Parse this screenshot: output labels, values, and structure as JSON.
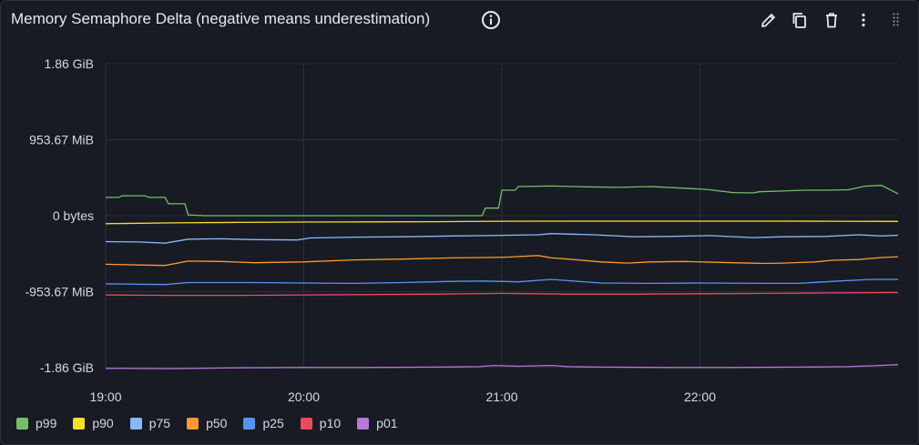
{
  "panel": {
    "title": "Memory Semaphore Delta (negative means underestimation)",
    "icons": [
      "info-icon",
      "edit-icon",
      "duplicate-icon",
      "delete-icon",
      "more-vertical-icon",
      "drag-handle-icon"
    ]
  },
  "chart_data": {
    "type": "line",
    "title": "Memory Semaphore Delta (negative means underestimation)",
    "y_unit": "MiB",
    "yticks": [
      {
        "label": "1.86 GiB",
        "value": 1907.35
      },
      {
        "label": "953.67 MiB",
        "value": 953.67
      },
      {
        "label": "0 bytes",
        "value": 0
      },
      {
        "label": "-953.67 MiB",
        "value": -953.67
      },
      {
        "label": "-1.86 GiB",
        "value": -1907.35
      }
    ],
    "xticks": [
      {
        "label": "19:00",
        "value": 0
      },
      {
        "label": "20:00",
        "value": 60
      },
      {
        "label": "21:00",
        "value": 120
      },
      {
        "label": "22:00",
        "value": 180
      }
    ],
    "x_unit": "minutes after 19:00",
    "xlim": [
      0,
      240
    ],
    "ylim": [
      -1907.35,
      1907.35
    ],
    "grid": true,
    "legend_position": "bottom-left",
    "series": [
      {
        "name": "p99",
        "color": "#73bf69",
        "points": [
          [
            0,
            230
          ],
          [
            4,
            230
          ],
          [
            5,
            250
          ],
          [
            12,
            250
          ],
          [
            13,
            230
          ],
          [
            18,
            230
          ],
          [
            19,
            150
          ],
          [
            24,
            150
          ],
          [
            25,
            10
          ],
          [
            30,
            0
          ],
          [
            60,
            0
          ],
          [
            90,
            0
          ],
          [
            114,
            0
          ],
          [
            115,
            95
          ],
          [
            119,
            95
          ],
          [
            120,
            320
          ],
          [
            124,
            320
          ],
          [
            125,
            365
          ],
          [
            135,
            372
          ],
          [
            145,
            362
          ],
          [
            155,
            355
          ],
          [
            165,
            365
          ],
          [
            175,
            345
          ],
          [
            182,
            330
          ],
          [
            190,
            290
          ],
          [
            196,
            285
          ],
          [
            198,
            300
          ],
          [
            205,
            310
          ],
          [
            212,
            320
          ],
          [
            219,
            320
          ],
          [
            225,
            325
          ],
          [
            230,
            370
          ],
          [
            235,
            380
          ],
          [
            240,
            275
          ]
        ]
      },
      {
        "name": "p90",
        "color": "#fade2a",
        "points": [
          [
            0,
            -100
          ],
          [
            20,
            -90
          ],
          [
            40,
            -85
          ],
          [
            60,
            -80
          ],
          [
            80,
            -78
          ],
          [
            100,
            -75
          ],
          [
            120,
            -70
          ],
          [
            140,
            -68
          ],
          [
            160,
            -68
          ],
          [
            180,
            -68
          ],
          [
            200,
            -68
          ],
          [
            220,
            -70
          ],
          [
            240,
            -72
          ]
        ]
      },
      {
        "name": "p75",
        "color": "#8ab8ff",
        "points": [
          [
            0,
            -325
          ],
          [
            10,
            -330
          ],
          [
            18,
            -345
          ],
          [
            25,
            -295
          ],
          [
            35,
            -290
          ],
          [
            45,
            -300
          ],
          [
            58,
            -305
          ],
          [
            62,
            -280
          ],
          [
            75,
            -270
          ],
          [
            90,
            -265
          ],
          [
            105,
            -255
          ],
          [
            115,
            -250
          ],
          [
            122,
            -245
          ],
          [
            131,
            -240
          ],
          [
            135,
            -225
          ],
          [
            148,
            -240
          ],
          [
            160,
            -265
          ],
          [
            170,
            -260
          ],
          [
            183,
            -250
          ],
          [
            196,
            -275
          ],
          [
            205,
            -265
          ],
          [
            218,
            -260
          ],
          [
            228,
            -240
          ],
          [
            235,
            -255
          ],
          [
            240,
            -245
          ]
        ]
      },
      {
        "name": "p50",
        "color": "#ff9830",
        "points": [
          [
            0,
            -610
          ],
          [
            12,
            -620
          ],
          [
            18,
            -625
          ],
          [
            25,
            -570
          ],
          [
            35,
            -575
          ],
          [
            45,
            -590
          ],
          [
            60,
            -580
          ],
          [
            75,
            -555
          ],
          [
            90,
            -545
          ],
          [
            105,
            -530
          ],
          [
            115,
            -525
          ],
          [
            122,
            -520
          ],
          [
            131,
            -500
          ],
          [
            135,
            -530
          ],
          [
            140,
            -545
          ],
          [
            150,
            -580
          ],
          [
            158,
            -595
          ],
          [
            165,
            -580
          ],
          [
            175,
            -575
          ],
          [
            190,
            -590
          ],
          [
            200,
            -600
          ],
          [
            205,
            -595
          ],
          [
            215,
            -580
          ],
          [
            220,
            -560
          ],
          [
            228,
            -550
          ],
          [
            235,
            -525
          ],
          [
            240,
            -515
          ]
        ]
      },
      {
        "name": "p25",
        "color": "#5794f2",
        "points": [
          [
            0,
            -855
          ],
          [
            18,
            -865
          ],
          [
            25,
            -840
          ],
          [
            45,
            -840
          ],
          [
            60,
            -845
          ],
          [
            75,
            -850
          ],
          [
            90,
            -840
          ],
          [
            105,
            -825
          ],
          [
            115,
            -820
          ],
          [
            125,
            -830
          ],
          [
            135,
            -800
          ],
          [
            140,
            -815
          ],
          [
            150,
            -845
          ],
          [
            165,
            -850
          ],
          [
            180,
            -845
          ],
          [
            200,
            -850
          ],
          [
            210,
            -850
          ],
          [
            222,
            -820
          ],
          [
            232,
            -800
          ],
          [
            240,
            -800
          ]
        ]
      },
      {
        "name": "p10",
        "color": "#f2495c",
        "points": [
          [
            0,
            -995
          ],
          [
            20,
            -1000
          ],
          [
            40,
            -1000
          ],
          [
            60,
            -995
          ],
          [
            80,
            -990
          ],
          [
            100,
            -985
          ],
          [
            120,
            -975
          ],
          [
            140,
            -985
          ],
          [
            160,
            -985
          ],
          [
            180,
            -980
          ],
          [
            200,
            -975
          ],
          [
            220,
            -970
          ],
          [
            240,
            -965
          ]
        ]
      },
      {
        "name": "p01",
        "color": "#b877d9",
        "points": [
          [
            0,
            -1915
          ],
          [
            20,
            -1920
          ],
          [
            40,
            -1910
          ],
          [
            60,
            -1905
          ],
          [
            80,
            -1905
          ],
          [
            100,
            -1900
          ],
          [
            113,
            -1895
          ],
          [
            118,
            -1880
          ],
          [
            125,
            -1890
          ],
          [
            135,
            -1880
          ],
          [
            140,
            -1895
          ],
          [
            150,
            -1900
          ],
          [
            170,
            -1905
          ],
          [
            190,
            -1905
          ],
          [
            210,
            -1900
          ],
          [
            225,
            -1895
          ],
          [
            232,
            -1885
          ],
          [
            240,
            -1870
          ]
        ]
      }
    ]
  }
}
